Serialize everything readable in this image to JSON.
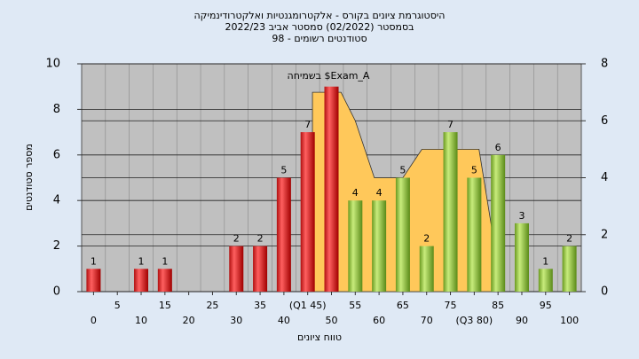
{
  "chart_data": {
    "type": "bar",
    "title": "היסטוגרמת ציונים בקורס - אלקטרומגנטיות ואלקטרודינמיקה",
    "subtitle": "בסמסטר  (02/2022)  סמסטר אביב 2022/23",
    "subtitle2": "סטודנטים רשומים - 98",
    "xlabel": "טווח ציונים",
    "ylabel": "מספר סטודנטים",
    "categories": [
      "0",
      "5",
      "10",
      "15",
      "20",
      "25",
      "30",
      "35",
      "40",
      "(Q1 45)",
      "50",
      "55",
      "60",
      "65",
      "70",
      "75",
      "(Q3 80)",
      "85",
      "90",
      "95",
      "100"
    ],
    "values": [
      1,
      0,
      1,
      1,
      0,
      0,
      2,
      2,
      5,
      7,
      9,
      4,
      4,
      5,
      2,
      7,
      5,
      6,
      3,
      1,
      2
    ],
    "value_labels": [
      "1",
      null,
      "1",
      "1",
      null,
      null,
      "2",
      "2",
      "5",
      "7",
      null,
      "4",
      "4",
      "5",
      "2",
      "7",
      "5",
      "6",
      "3",
      "1",
      "2"
    ],
    "colors": [
      "red",
      "red",
      "red",
      "red",
      "red",
      "red",
      "red",
      "red",
      "red",
      "red",
      "red",
      "green",
      "green",
      "green",
      "green",
      "green",
      "green",
      "green",
      "green",
      "green",
      "green"
    ],
    "ylim": [
      0,
      10
    ],
    "yticks": [
      0,
      2,
      4,
      6,
      8,
      10
    ],
    "y2lim": [
      0,
      8
    ],
    "y2ticks": [
      0,
      2,
      4,
      6,
      8
    ],
    "grid": true,
    "area": {
      "name": "בשמיחה $Exam_A",
      "color": "#ffc85a",
      "axis": "y2",
      "x": [
        46,
        52,
        55,
        59,
        65,
        69,
        81,
        84
      ],
      "values": [
        7,
        7,
        6,
        4,
        4,
        5,
        5,
        1.9
      ]
    }
  }
}
